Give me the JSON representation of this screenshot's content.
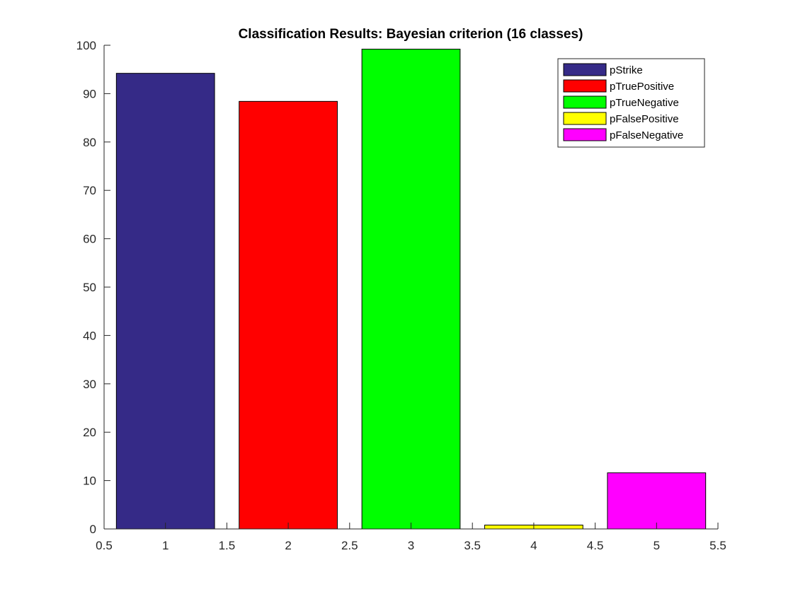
{
  "chart_data": {
    "type": "bar",
    "title": "Classification Results: Bayesian criterion (16 classes)",
    "xlabel": "",
    "ylabel": "",
    "xlim": [
      0.5,
      5.5
    ],
    "ylim": [
      0,
      100
    ],
    "xticks": [
      0.5,
      1,
      1.5,
      2,
      2.5,
      3,
      3.5,
      4,
      4.5,
      5,
      5.5
    ],
    "xtick_labels": [
      "0.5",
      "1",
      "1.5",
      "2",
      "2.5",
      "3",
      "3.5",
      "4",
      "4.5",
      "5",
      "5.5"
    ],
    "yticks": [
      0,
      10,
      20,
      30,
      40,
      50,
      60,
      70,
      80,
      90,
      100
    ],
    "ytick_labels": [
      "0",
      "10",
      "20",
      "30",
      "40",
      "50",
      "60",
      "70",
      "80",
      "90",
      "100"
    ],
    "bar_width": 0.8,
    "grid": false,
    "legend_position": "top-right",
    "series": [
      {
        "name": "pStrike",
        "x": 1,
        "value": 94.2,
        "color": "#352A87"
      },
      {
        "name": "pTruePositive",
        "x": 2,
        "value": 88.4,
        "color": "#FF0000"
      },
      {
        "name": "pTrueNegative",
        "x": 3,
        "value": 99.2,
        "color": "#00FF00"
      },
      {
        "name": "pFalsePositive",
        "x": 4,
        "value": 0.8,
        "color": "#FFFF00"
      },
      {
        "name": "pFalseNegative",
        "x": 5,
        "value": 11.6,
        "color": "#FF00FF"
      }
    ]
  }
}
